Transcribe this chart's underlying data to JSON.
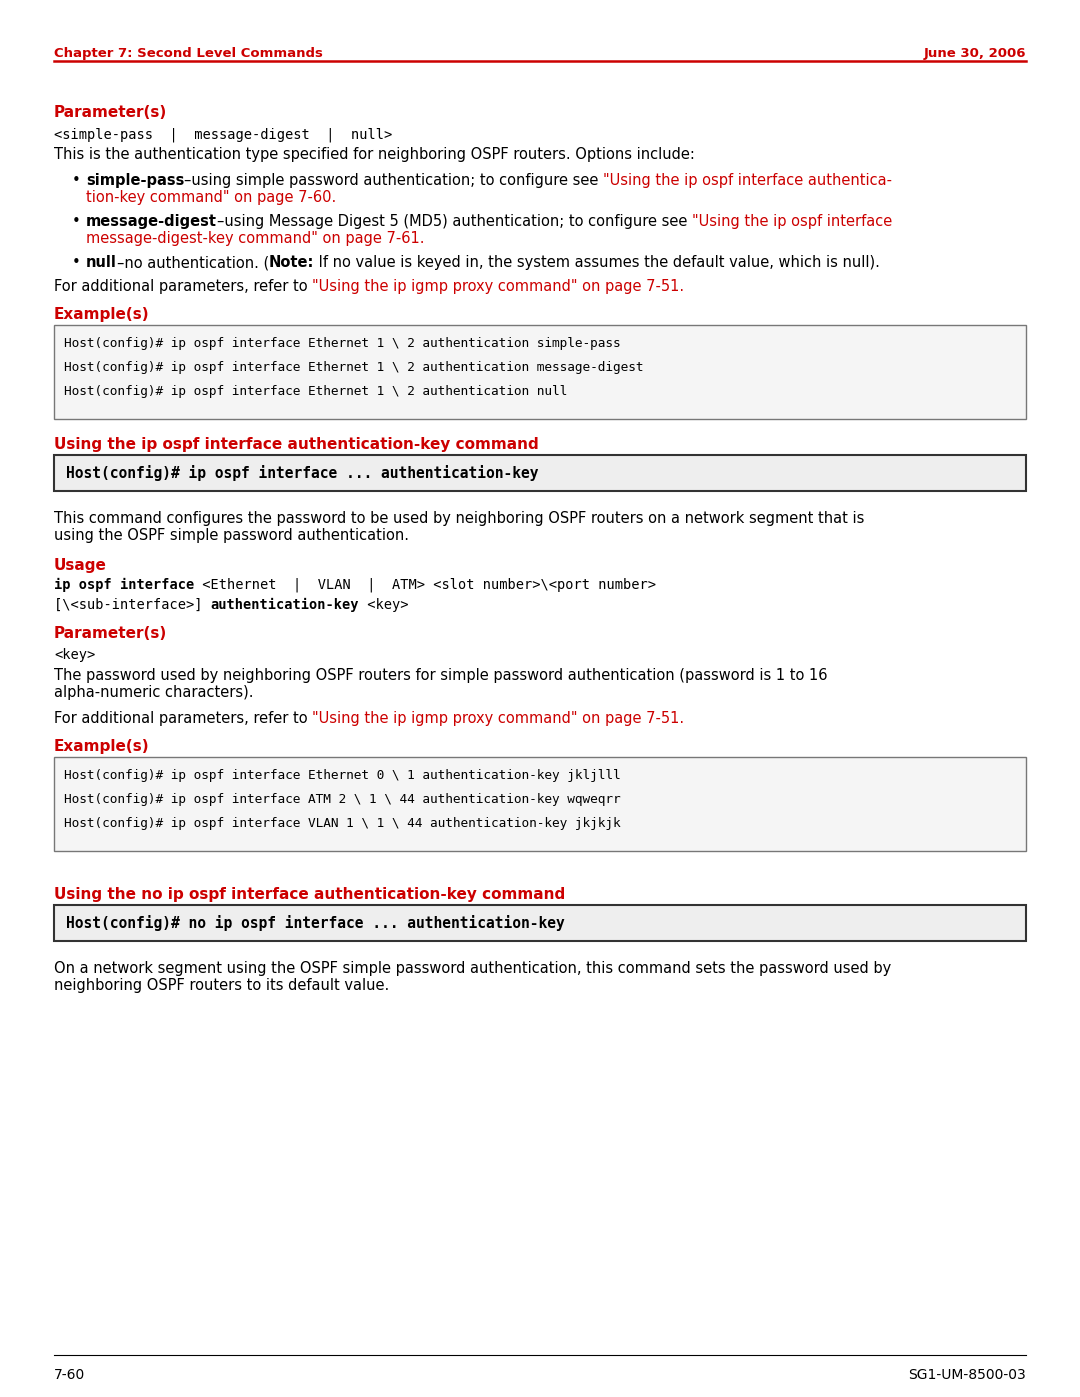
{
  "page_bg": "#ffffff",
  "header_left": "Chapter 7: Second Level Commands",
  "header_right": "June 30, 2006",
  "header_color": "#cc0000",
  "footer_left": "7-60",
  "footer_right": "SG1-UM-8500-03",
  "red_color": "#cc0000",
  "black_color": "#000000",
  "section1_heading": "Parameter(s)",
  "section1_mono": "<simple-pass  |  message-digest  |  null>",
  "section1_body": "This is the authentication type specified for neighboring OSPF routers. Options include:",
  "section2_heading": "Example(s)",
  "code_box1_lines": [
    "Host(config)# ip ospf interface Ethernet 1 \\ 2 authentication simple-pass",
    "Host(config)# ip ospf interface Ethernet 1 \\ 2 authentication message-digest",
    "Host(config)# ip ospf interface Ethernet 1 \\ 2 authentication null"
  ],
  "section3_heading": "Using the ip ospf interface authentication-key command",
  "cmd_box1": "Host(config)# ip ospf interface ... authentication-key",
  "section3_body1": "This command configures the password to be used by neighboring OSPF routers on a network segment that is",
  "section3_body2": "using the OSPF simple password authentication.",
  "section4_heading": "Usage",
  "section5_heading": "Parameter(s)",
  "param2_mono": "<key>",
  "param2_body1": "The password used by neighboring OSPF routers for simple password authentication (password is 1 to 16",
  "param2_body2": "alpha-numeric characters).",
  "section6_heading": "Example(s)",
  "code_box2_lines": [
    "Host(config)# ip ospf interface Ethernet 0 \\ 1 authentication-key jkljlll",
    "Host(config)# ip ospf interface ATM 2 \\ 1 \\ 44 authentication-key wqweqrr",
    "Host(config)# ip ospf interface VLAN 1 \\ 1 \\ 44 authentication-key jkjkjk"
  ],
  "section7_heading": "Using the no ip ospf interface authentication-key command",
  "cmd_box2": "Host(config)# no ip ospf interface ... authentication-key",
  "section7_body1": "On a network segment using the OSPF simple password authentication, this command sets the password used by",
  "section7_body2": "neighboring OSPF routers to its default value."
}
